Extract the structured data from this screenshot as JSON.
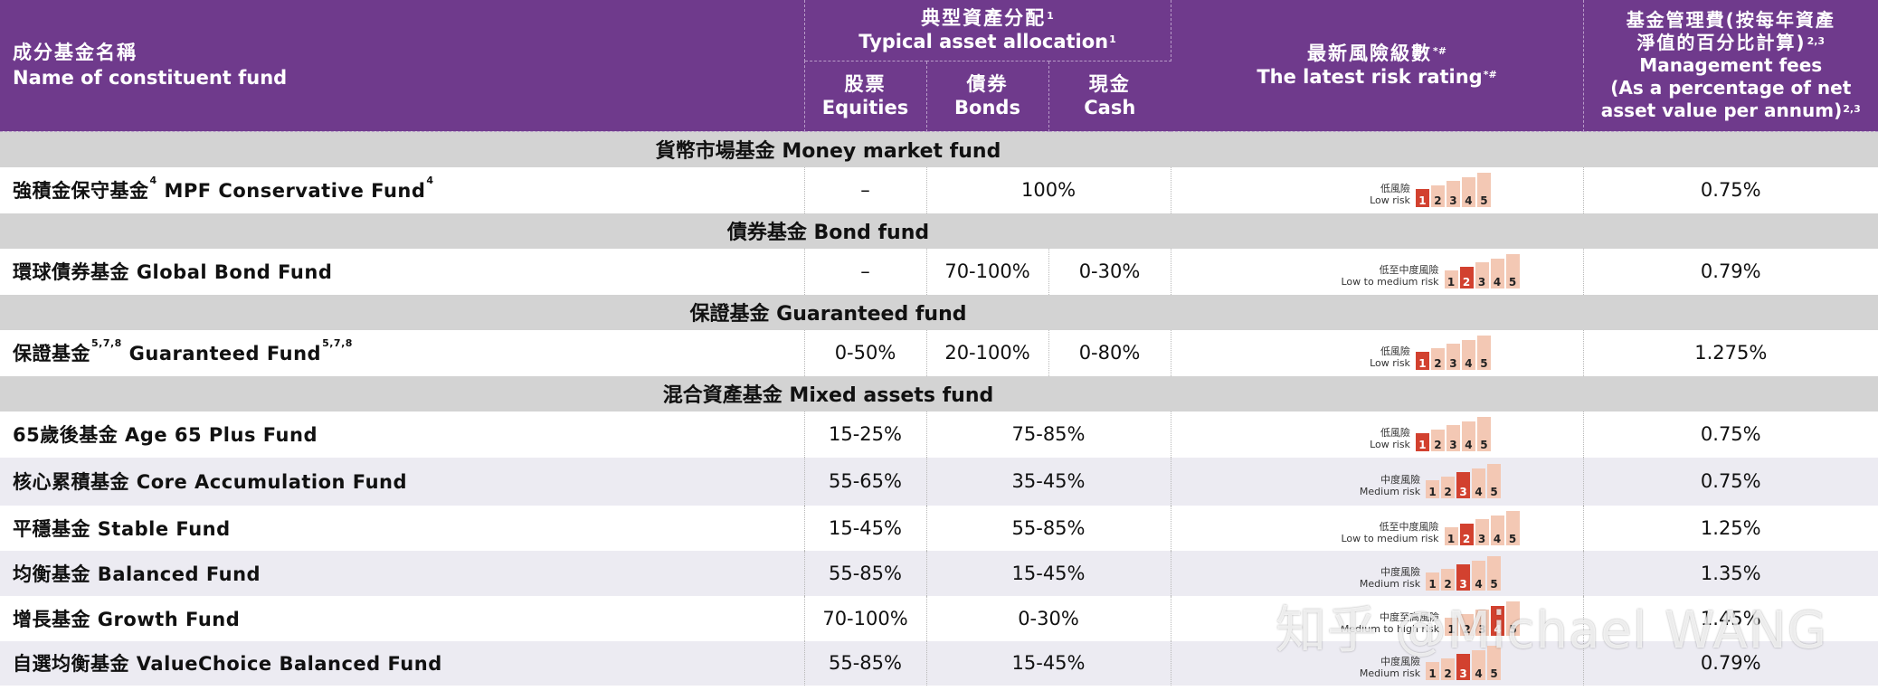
{
  "header": {
    "name_zh": "成分基金名稱",
    "name_en": "Name of constituent fund",
    "alloc_zh": "典型資產分配",
    "alloc_en": "Typical asset allocation",
    "alloc_sup": "1",
    "equities_zh": "股票",
    "equities_en": "Equities",
    "bonds_zh": "債券",
    "bonds_en": "Bonds",
    "cash_zh": "現金",
    "cash_en": "Cash",
    "risk_zh": "最新風險級數",
    "risk_en": "The latest risk rating",
    "risk_sup": "*#",
    "fee_zh_1": "基金管理費(按每年資產",
    "fee_zh_2": "淨值的百分比計算)",
    "fee_sup": "2,3",
    "fee_en_1": "Management fees",
    "fee_en_2": "(As a percentage of net",
    "fee_en_3": "asset value per annum)"
  },
  "risk_scale": [
    "1",
    "2",
    "3",
    "4",
    "5"
  ],
  "categories": {
    "money": "貨幣市場基金 Money market fund",
    "bond": "債券基金 Bond fund",
    "guaranteed": "保證基金 Guaranteed fund",
    "mixed": "混合資產基金 Mixed assets fund"
  },
  "funds": [
    {
      "name_zh": "強積金保守基金",
      "sup1": "4",
      "name_en": "MPF Conservative Fund",
      "sup2": "4",
      "equities": "–",
      "bonds_cash": "100%",
      "risk_zh": "低風險",
      "risk_en": "Low risk",
      "risk_level": 1,
      "fee": "0.75%"
    },
    {
      "name_zh": "環球債券基金",
      "name_en": "Global Bond Fund",
      "equities": "–",
      "bonds": "70-100%",
      "cash": "0-30%",
      "risk_zh": "低至中度風險",
      "risk_en": "Low to medium risk",
      "risk_level": 2,
      "fee": "0.79%"
    },
    {
      "name_zh": "保證基金",
      "sup1": "5,7,8",
      "name_en": "Guaranteed Fund",
      "sup2": "5,7,8",
      "equities": "0-50%",
      "bonds": "20-100%",
      "cash": "0-80%",
      "risk_zh": "低風險",
      "risk_en": "Low risk",
      "risk_level": 1,
      "fee": "1.275%"
    },
    {
      "name": "65歲後基金 Age 65 Plus Fund",
      "equities": "15-25%",
      "bonds_cash": "75-85%",
      "risk_zh": "低風險",
      "risk_en": "Low risk",
      "risk_level": 1,
      "fee": "0.75%"
    },
    {
      "name": "核心累積基金 Core Accumulation Fund",
      "equities": "55-65%",
      "bonds_cash": "35-45%",
      "risk_zh": "中度風險",
      "risk_en": "Medium risk",
      "risk_level": 3,
      "fee": "0.75%"
    },
    {
      "name": "平穩基金 Stable Fund",
      "equities": "15-45%",
      "bonds_cash": "55-85%",
      "risk_zh": "低至中度風險",
      "risk_en": "Low to medium risk",
      "risk_level": 2,
      "fee": "1.25%"
    },
    {
      "name": "均衡基金 Balanced Fund",
      "equities": "55-85%",
      "bonds_cash": "15-45%",
      "risk_zh": "中度風險",
      "risk_en": "Medium risk",
      "risk_level": 3,
      "fee": "1.35%"
    },
    {
      "name": "增長基金 Growth Fund",
      "equities": "70-100%",
      "bonds_cash": "0-30%",
      "risk_zh": "中度至高風險",
      "risk_en": "Medium to high risk",
      "risk_level": 4,
      "fee": "1.45%"
    },
    {
      "name": "自選均衡基金 ValueChoice Balanced Fund",
      "equities": "55-85%",
      "bonds_cash": "15-45%",
      "risk_zh": "中度風險",
      "risk_en": "Medium risk",
      "risk_level": 3,
      "fee": "0.79%"
    }
  ],
  "watermark": "知乎 @Michael WANG"
}
